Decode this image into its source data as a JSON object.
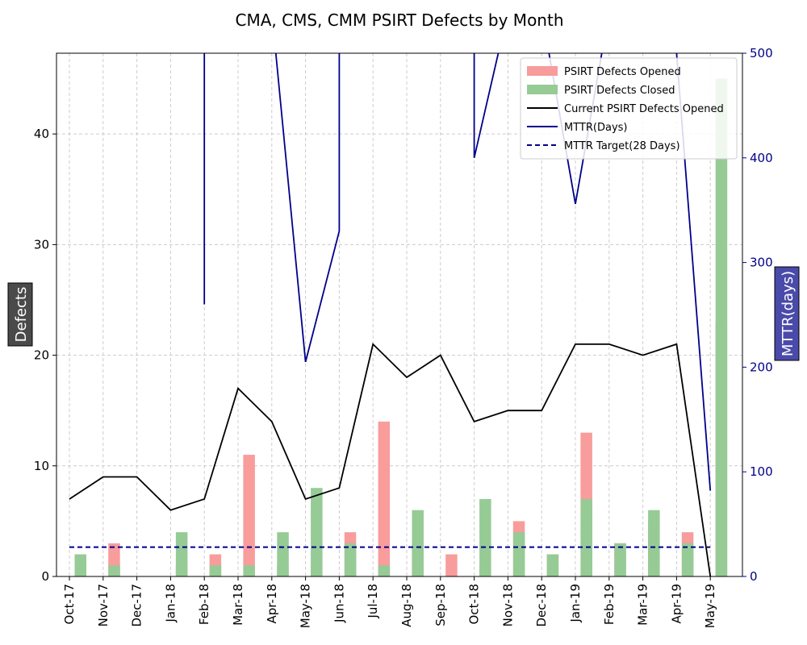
{
  "chart_data": {
    "type": "bar",
    "title": "CMA, CMS, CMM PSIRT Defects by Month",
    "categories": [
      "Oct-17",
      "Nov-17",
      "Dec-17",
      "Jan-18",
      "Feb-18",
      "Mar-18",
      "Apr-18",
      "May-18",
      "Jun-18",
      "Jul-18",
      "Aug-18",
      "Sep-18",
      "Oct-18",
      "Nov-18",
      "Dec-18",
      "Jan-19",
      "Feb-19",
      "Mar-19",
      "Apr-19",
      "May-19"
    ],
    "ylabel": "Defects",
    "y2label": "MTTR(days)",
    "ylim": [
      0,
      47.3
    ],
    "y2lim": [
      0,
      500
    ],
    "yticks": [
      0,
      10,
      20,
      30,
      40
    ],
    "y2ticks": [
      0,
      100,
      200,
      300,
      400,
      500
    ],
    "grid": true,
    "legend_position": "top-right",
    "series": [
      {
        "name": "PSIRT Defects Opened",
        "kind": "bar",
        "axis": "left",
        "color": "#f4777780",
        "values": [
          0,
          3,
          0,
          1,
          2,
          11,
          1,
          1,
          4,
          14,
          3,
          2,
          1,
          5,
          2,
          13,
          3,
          5,
          4,
          23
        ]
      },
      {
        "name": "PSIRT Defects Closed",
        "kind": "bar",
        "axis": "left",
        "color": "#7cc47c",
        "values": [
          2,
          1,
          0,
          4,
          1,
          1,
          4,
          8,
          3,
          1,
          6,
          0,
          7,
          4,
          2,
          7,
          3,
          6,
          3,
          45
        ]
      },
      {
        "name": "Current PSIRT Defects Opened",
        "kind": "line",
        "axis": "left",
        "color": "#000000",
        "values": [
          7,
          9,
          9,
          6,
          7,
          17,
          14,
          7,
          8,
          21,
          18,
          20,
          14,
          15,
          15,
          21,
          21,
          20,
          21,
          0
        ]
      },
      {
        "name": "MTTR(Days)",
        "kind": "line",
        "axis": "right",
        "color": "#00008b",
        "points": [
          {
            "x": 4,
            "y": 260
          },
          {
            "x": 4,
            "y": 540
          },
          {
            "x": 6,
            "y": 540
          },
          {
            "x": 7,
            "y": 205
          },
          {
            "x": 8,
            "y": 330
          },
          {
            "x": 8,
            "y": 540
          },
          {
            "x": 12,
            "y": 540
          },
          {
            "x": 12,
            "y": 400
          },
          {
            "x": 13,
            "y": 540
          },
          {
            "x": 14,
            "y": 540
          },
          {
            "x": 15,
            "y": 356
          },
          {
            "x": 16,
            "y": 540
          },
          {
            "x": 17,
            "y": 540
          },
          {
            "x": 18,
            "y": 500
          },
          {
            "x": 19,
            "y": 82
          }
        ]
      },
      {
        "name": "MTTR Target(28 Days)",
        "kind": "dashed-line",
        "axis": "right",
        "color": "#00008b",
        "value": 28
      }
    ]
  }
}
